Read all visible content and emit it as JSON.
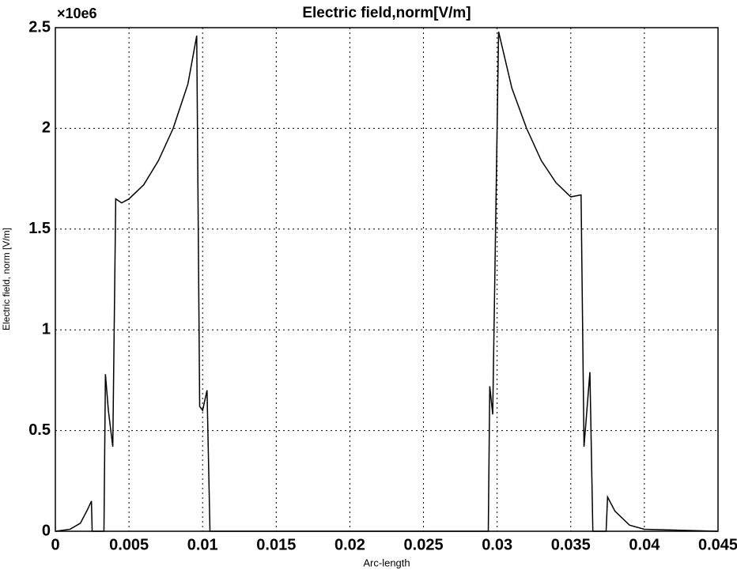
{
  "chart_data": {
    "type": "line",
    "title": "Electric field,norm[V/m]",
    "x_label": "Arc-length",
    "y_label": "Electric field, norm [V/m]",
    "y_multiplier": "×10e6",
    "x": [
      0,
      0.001,
      0.0017,
      0.0022,
      0.00245,
      0.0025,
      0.0033,
      0.0034,
      0.0036,
      0.0039,
      0.0041,
      0.0045,
      0.005,
      0.006,
      0.007,
      0.008,
      0.009,
      0.0096,
      0.0098,
      0.01,
      0.0103,
      0.0105,
      0.0294,
      0.0295,
      0.0297,
      0.0301,
      0.031,
      0.032,
      0.033,
      0.034,
      0.035,
      0.0357,
      0.0359,
      0.0363,
      0.0365,
      0.0374,
      0.0375,
      0.038,
      0.039,
      0.04,
      0.045
    ],
    "series": [
      {
        "name": "Electric field, norm",
        "color": "#000000",
        "values": [
          0,
          0.01,
          0.04,
          0.11,
          0.15,
          0,
          0,
          0.78,
          0.6,
          0.42,
          1.65,
          1.63,
          1.65,
          1.72,
          1.84,
          2.0,
          2.22,
          2.46,
          0.62,
          0.6,
          0.7,
          0,
          0,
          0.72,
          0.58,
          2.48,
          2.2,
          2.0,
          1.84,
          1.73,
          1.66,
          1.67,
          0.42,
          0.79,
          0,
          0,
          0.17,
          0.1,
          0.03,
          0.01,
          0
        ]
      }
    ],
    "xlim": [
      0,
      0.045
    ],
    "xticks": [
      0,
      0.005,
      0.01,
      0.015,
      0.02,
      0.025,
      0.03,
      0.035,
      0.04,
      0.045
    ],
    "ylim": [
      0,
      2.5
    ],
    "yticks": [
      0,
      0.5,
      1,
      1.5,
      2,
      2.5
    ],
    "grid": true
  }
}
